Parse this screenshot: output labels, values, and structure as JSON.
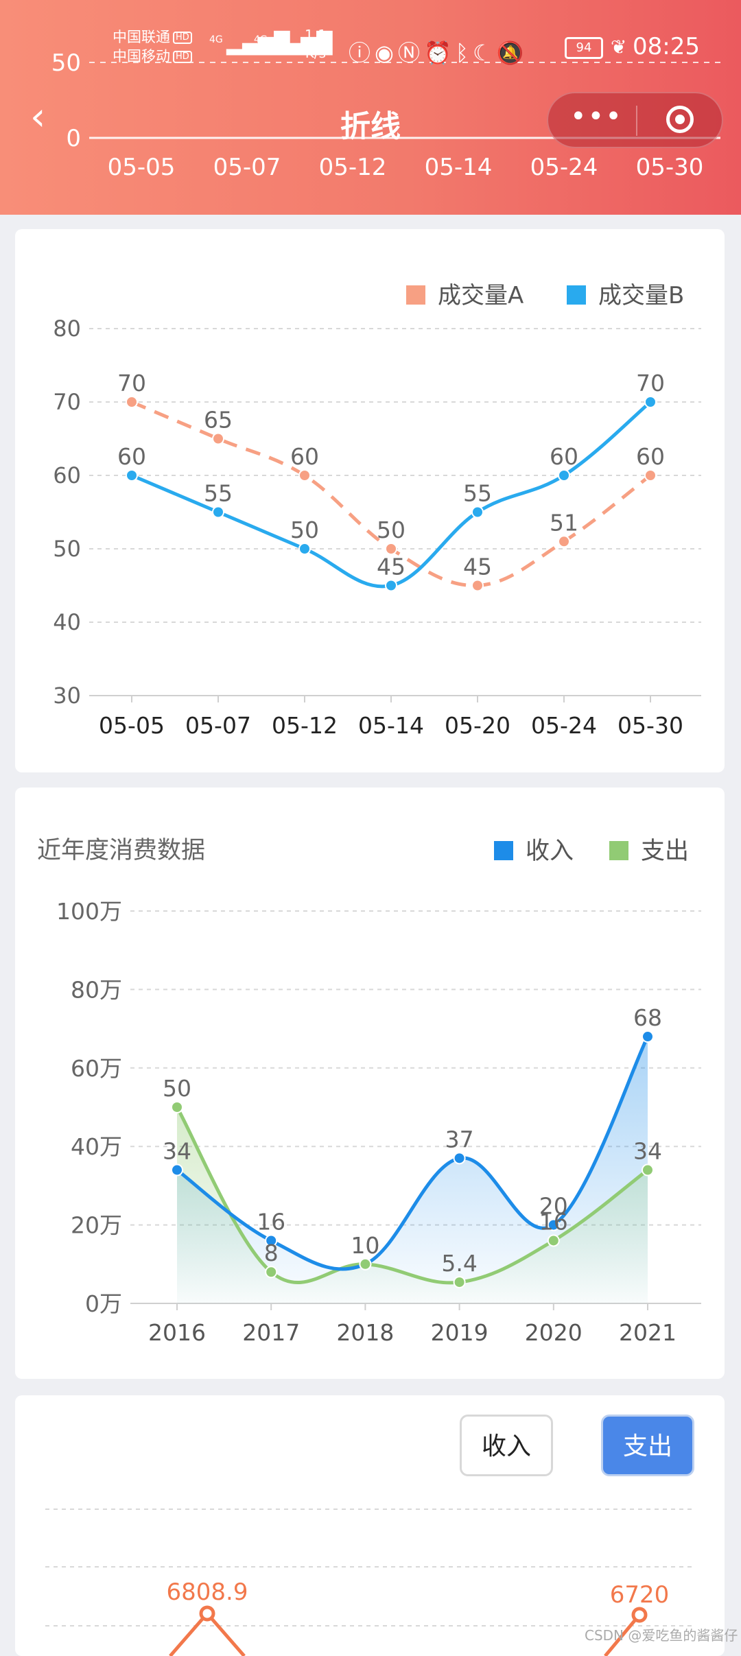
{
  "status_bar": {
    "carrier1": "中国联通",
    "carrier2": "中国移动",
    "hd": "HD",
    "net1": "4G",
    "net2": "4G",
    "speed_value": "1.1",
    "speed_unit": "K/s",
    "battery": "94",
    "time": "08:25"
  },
  "header": {
    "title": "折线",
    "capsule_dots": "•••",
    "background_axis": {
      "ticks": [
        "50",
        "0"
      ],
      "categories": [
        "05-05",
        "05-07",
        "05-12",
        "05-14",
        "05-24",
        "05-30"
      ]
    }
  },
  "chart_data": [
    {
      "type": "line",
      "categories": [
        "05-05",
        "05-07",
        "05-12",
        "05-14",
        "05-20",
        "05-24",
        "05-30"
      ],
      "series": [
        {
          "name": "成交量A",
          "values": [
            70,
            65,
            60,
            50,
            45,
            51,
            60
          ],
          "color": "#f7a083",
          "dashed": true,
          "smooth": true
        },
        {
          "name": "成交量B",
          "values": [
            60,
            55,
            50,
            45,
            55,
            60,
            70
          ],
          "color": "#29aaee",
          "dashed": false,
          "smooth": true
        }
      ],
      "ylim": [
        30,
        80
      ],
      "yticks": [
        "30",
        "40",
        "50",
        "60",
        "70",
        "80"
      ],
      "grid": true,
      "legend": "top-right"
    },
    {
      "type": "area",
      "title": "近年度消费数据",
      "categories": [
        "2016",
        "2017",
        "2018",
        "2019",
        "2020",
        "2021"
      ],
      "series": [
        {
          "name": "收入",
          "values": [
            34,
            16,
            10,
            37,
            20,
            68
          ],
          "labels": [
            "34",
            "16",
            "10",
            "37",
            "20",
            "68"
          ],
          "color": "#1d8ce8"
        },
        {
          "name": "支出",
          "values": [
            50,
            8,
            10,
            5.4,
            16,
            34
          ],
          "labels": [
            "50",
            "8",
            "10",
            "5.4",
            "16",
            "34"
          ],
          "color": "#91cb74"
        }
      ],
      "ylim": [
        0,
        100
      ],
      "yticks": [
        "0万",
        "20万",
        "40万",
        "60万",
        "80万",
        "100万"
      ],
      "grid": true,
      "legend": "top-right"
    },
    {
      "type": "line",
      "buttons": [
        "收入",
        "支出"
      ],
      "active_button": "支出",
      "visible_labels": [
        "6808.9",
        "6720"
      ],
      "color": "#f2784b",
      "grid": true
    }
  ],
  "watermark": "CSDN @爱吃鱼的酱酱仔"
}
